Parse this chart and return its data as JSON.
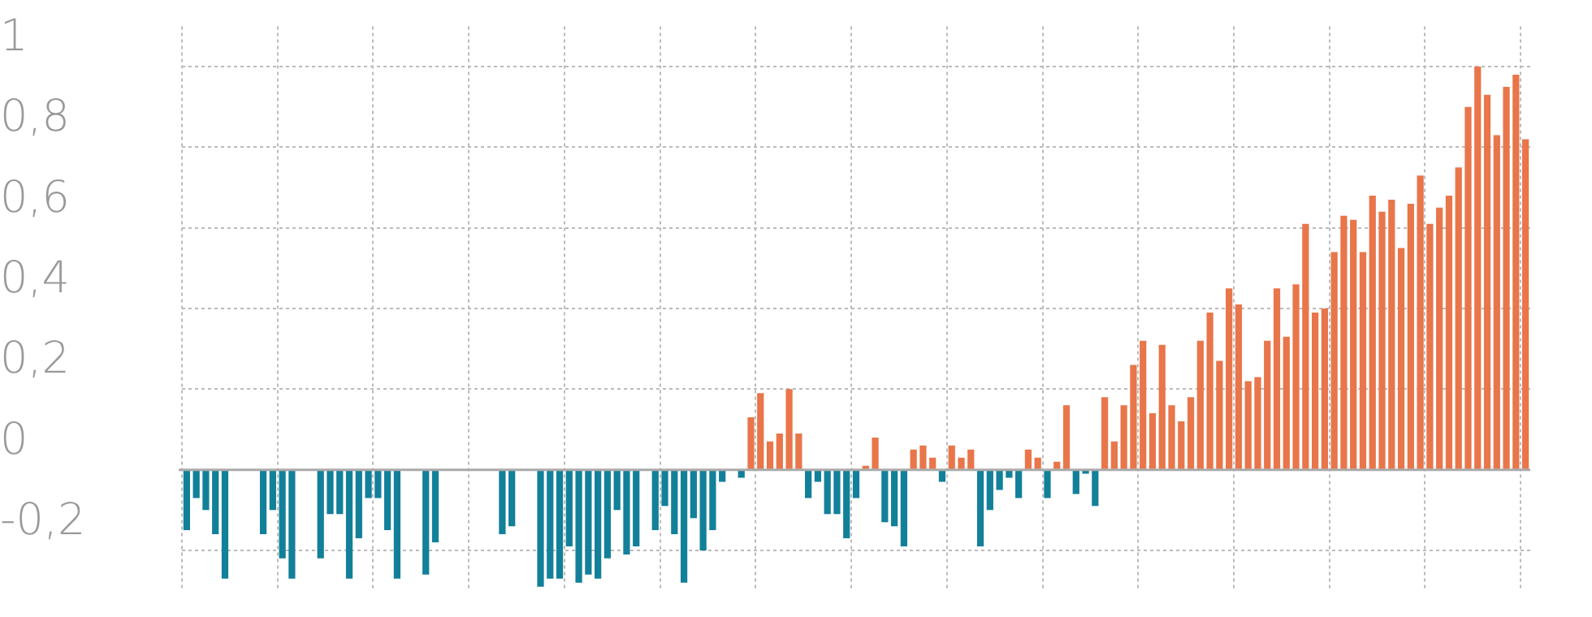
{
  "chart_data": {
    "type": "bar",
    "categories": [
      null,
      null,
      null,
      null,
      null,
      null,
      null,
      null,
      null,
      null,
      null,
      null,
      null,
      null,
      null,
      null,
      null,
      null,
      null,
      null,
      null,
      null,
      null,
      null,
      null,
      null,
      null,
      null,
      null,
      null,
      null,
      null,
      null,
      null,
      null,
      null,
      null,
      null,
      null,
      null,
      null,
      null,
      null,
      null,
      null,
      null,
      null,
      null,
      null,
      null,
      null,
      null,
      null,
      null,
      null,
      null,
      null,
      null,
      null,
      null,
      null,
      null,
      null,
      null,
      null,
      null,
      null,
      null,
      null,
      null,
      null,
      null,
      null,
      null,
      null,
      null,
      null,
      null,
      null,
      null,
      null,
      null,
      null,
      null,
      null,
      null,
      null,
      null,
      null,
      null,
      null,
      null,
      null,
      null,
      null,
      null,
      null,
      null,
      null,
      null,
      null,
      null,
      null,
      null,
      null,
      null,
      null,
      null,
      null,
      null,
      null,
      null,
      null,
      null,
      null,
      null,
      null,
      null,
      null,
      null,
      null,
      null,
      null,
      null,
      null,
      null,
      null,
      null,
      null,
      null,
      null,
      null,
      null,
      null,
      null,
      null,
      null,
      null,
      null,
      null,
      null
    ],
    "values": [
      -0.15,
      -0.07,
      -0.1,
      -0.16,
      -0.27,
      null,
      null,
      null,
      -0.16,
      -0.1,
      -0.22,
      -0.27,
      null,
      null,
      -0.22,
      -0.11,
      -0.11,
      -0.27,
      -0.17,
      -0.07,
      -0.07,
      -0.15,
      -0.27,
      null,
      null,
      -0.26,
      -0.18,
      null,
      null,
      null,
      null,
      null,
      null,
      -0.16,
      -0.14,
      null,
      null,
      -0.29,
      -0.27,
      -0.27,
      -0.19,
      -0.28,
      -0.26,
      -0.27,
      -0.22,
      -0.1,
      -0.21,
      -0.19,
      null,
      -0.15,
      -0.09,
      -0.16,
      -0.28,
      -0.12,
      -0.2,
      -0.15,
      -0.03,
      0,
      -0.02,
      0.13,
      0.19,
      0.07,
      0.09,
      0.2,
      0.09,
      -0.07,
      -0.03,
      -0.11,
      -0.11,
      -0.17,
      -0.07,
      0.01,
      0.08,
      -0.13,
      -0.14,
      -0.19,
      0.05,
      0.06,
      0.03,
      -0.03,
      0.06,
      0.03,
      0.05,
      -0.19,
      -0.1,
      -0.05,
      -0.02,
      -0.07,
      0.05,
      0.03,
      -0.07,
      0.02,
      0.16,
      -0.06,
      -0.01,
      -0.09,
      0.18,
      0.07,
      0.16,
      0.26,
      0.32,
      0.14,
      0.31,
      0.16,
      0.12,
      0.18,
      0.32,
      0.39,
      0.27,
      0.45,
      0.41,
      0.22,
      0.23,
      0.32,
      0.45,
      0.33,
      0.46,
      0.61,
      0.39,
      0.4,
      0.54,
      0.63,
      0.62,
      0.54,
      0.68,
      0.64,
      0.67,
      0.55,
      0.66,
      0.73,
      0.61,
      0.65,
      0.68,
      0.75,
      0.9,
      1.0,
      0.93,
      0.83,
      0.95,
      0.98,
      0.82
    ],
    "colors": [
      "#13809a",
      "#13809a",
      "#13809a",
      "#13809a",
      "#13809a",
      "#13809a",
      "#13809a",
      "#13809a",
      "#13809a",
      "#13809a",
      "#13809a",
      "#13809a",
      "#13809a",
      "#13809a",
      "#13809a",
      "#13809a",
      "#13809a",
      "#13809a",
      "#13809a",
      "#13809a",
      "#13809a",
      "#13809a",
      "#13809a",
      "#13809a",
      "#13809a",
      "#13809a",
      "#13809a",
      "#13809a",
      "#13809a",
      "#13809a",
      "#13809a",
      "#13809a",
      "#13809a",
      "#13809a",
      "#13809a",
      "#13809a",
      "#13809a",
      "#13809a",
      "#13809a",
      "#13809a",
      "#13809a",
      "#13809a",
      "#13809a",
      "#13809a",
      "#13809a",
      "#13809a",
      "#13809a",
      "#13809a",
      "#13809a",
      "#13809a",
      "#13809a",
      "#13809a",
      "#13809a",
      "#13809a",
      "#13809a",
      "#13809a",
      "#13809a",
      "#e8764a",
      "#13809a",
      "#e8764a",
      "#e8764a",
      "#e8764a",
      "#e8764a",
      "#e8764a",
      "#e8764a",
      "#13809a",
      "#13809a",
      "#13809a",
      "#13809a",
      "#13809a",
      "#13809a",
      "#e8764a",
      "#e8764a",
      "#13809a",
      "#13809a",
      "#13809a",
      "#e8764a",
      "#e8764a",
      "#e8764a",
      "#13809a",
      "#e8764a",
      "#e8764a",
      "#e8764a",
      "#13809a",
      "#13809a",
      "#13809a",
      "#13809a",
      "#13809a",
      "#e8764a",
      "#e8764a",
      "#13809a",
      "#e8764a",
      "#e8764a",
      "#13809a",
      "#13809a",
      "#13809a",
      "#e8764a",
      "#e8764a",
      "#e8764a",
      "#e8764a",
      "#e8764a",
      "#e8764a",
      "#e8764a",
      "#e8764a",
      "#e8764a",
      "#e8764a",
      "#e8764a",
      "#e8764a",
      "#e8764a",
      "#e8764a",
      "#e8764a",
      "#e8764a",
      "#e8764a",
      "#e8764a",
      "#e8764a",
      "#e8764a",
      "#e8764a",
      "#e8764a",
      "#e8764a",
      "#e8764a",
      "#e8764a",
      "#e8764a",
      "#e8764a",
      "#e8764a",
      "#e8764a",
      "#e8764a",
      "#e8764a",
      "#e8764a",
      "#e8764a",
      "#e8764a",
      "#e8764a",
      "#e8764a",
      "#e8764a",
      "#e8764a",
      "#e8764a",
      "#e8764a",
      "#e8764a",
      "#e8764a",
      "#e8764a",
      "#e8764a",
      "#e8764a"
    ],
    "ylim": [
      -0.3,
      1.1
    ],
    "yticks": [
      {
        "value": -0.2,
        "label": "-0,2"
      },
      0,
      {
        "value": 0.2,
        "label": "0,2"
      },
      {
        "value": 0.4,
        "label": "0,4"
      },
      {
        "value": 0.6,
        "label": "0,6"
      },
      {
        "value": 0.8,
        "label": "0,8"
      },
      1
    ],
    "grid": true,
    "legend": false
  }
}
